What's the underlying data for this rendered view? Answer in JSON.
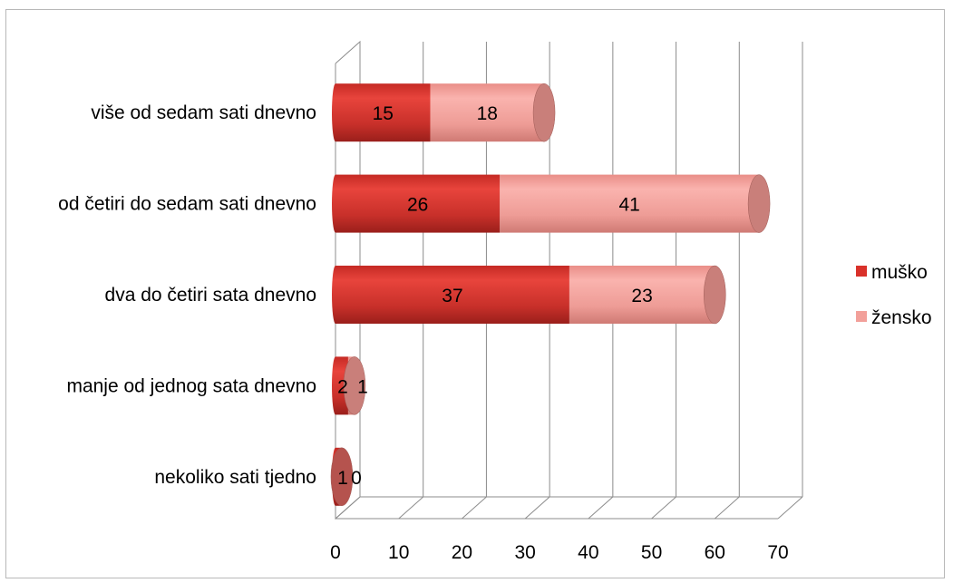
{
  "chart_data": {
    "type": "bar",
    "orientation": "horizontal",
    "stacked": true,
    "categories": [
      "više od sedam sati dnevno",
      "od četiri do sedam sati dnevno",
      "dva do četiri sata dnevno",
      "manje od jednog sata dnevno",
      "nekoliko sati tjedno"
    ],
    "series": [
      {
        "name": "muško",
        "values": [
          15,
          26,
          37,
          2,
          1
        ],
        "color": "#d9312a"
      },
      {
        "name": "žensko",
        "values": [
          18,
          41,
          23,
          1,
          0
        ],
        "color": "#f2a09a"
      }
    ],
    "xlim": [
      0,
      70
    ],
    "xticks": [
      "0",
      "10",
      "20",
      "30",
      "40",
      "50",
      "60",
      "70"
    ],
    "grid": true,
    "legend_position": "right"
  }
}
